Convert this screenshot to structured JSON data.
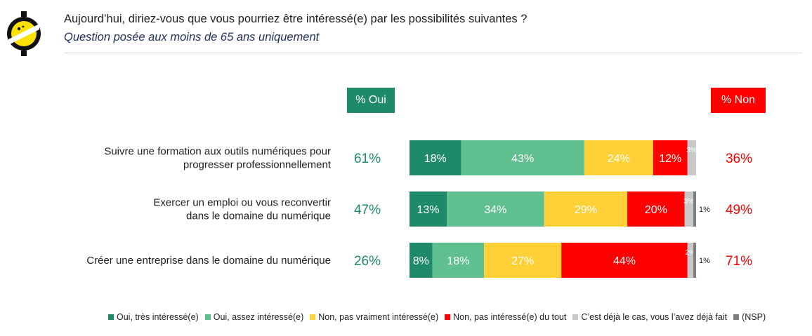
{
  "header": {
    "title": "Aujourd’hui, diriez-vous que vous pourriez être intéressé(e) par les possibilités suivantes ?",
    "subtitle": "Question posée aux moins de 65 ans uniquement"
  },
  "badges": {
    "oui": "% Oui",
    "non": "% Non"
  },
  "colors": {
    "oui_tres": "#1e8a6a",
    "oui_assez": "#5fbf8f",
    "non_pas_vraiment": "#ffd136",
    "non_pas_du_tout": "#ff0000",
    "deja_le_cas": "#c9c9c9",
    "nsp": "#7f7f7f",
    "oui_text": "#1e8a6a",
    "non_text": "#ff0000"
  },
  "chart_data": {
    "type": "bar",
    "orientation": "horizontal",
    "stacked": true,
    "categories": [
      "Suivre une formation aux outils numériques pour progresser professionnellement",
      "Exercer un emploi ou vous reconvertir dans le domaine du numérique",
      "Créer une entreprise dans le domaine du numérique"
    ],
    "category_lines": [
      [
        "Suivre une formation aux outils numériques pour",
        "progresser professionnellement"
      ],
      [
        "Exercer un emploi ou vous reconvertir",
        "dans le domaine du numérique"
      ],
      [
        "Créer une entreprise dans le domaine du numérique"
      ]
    ],
    "series": [
      {
        "name": "Oui, très intéressé(e)",
        "values": [
          18,
          13,
          8
        ]
      },
      {
        "name": "Oui, assez intéressé(e)",
        "values": [
          43,
          34,
          18
        ]
      },
      {
        "name": "Non, pas vraiment intéressé(e)",
        "values": [
          24,
          29,
          27
        ]
      },
      {
        "name": "Non, pas intéressé(e) du tout",
        "values": [
          12,
          20,
          44
        ]
      },
      {
        "name": "C’est déjà le cas, vous l’avez déjà fait",
        "values": [
          3,
          3,
          2
        ]
      },
      {
        "name": "(NSP)",
        "values": [
          0,
          1,
          1
        ]
      }
    ],
    "totals_oui": [
      "61%",
      "47%",
      "26%"
    ],
    "totals_non": [
      "36%",
      "49%",
      "71%"
    ],
    "xlim": [
      0,
      100
    ],
    "legend_position": "bottom"
  }
}
